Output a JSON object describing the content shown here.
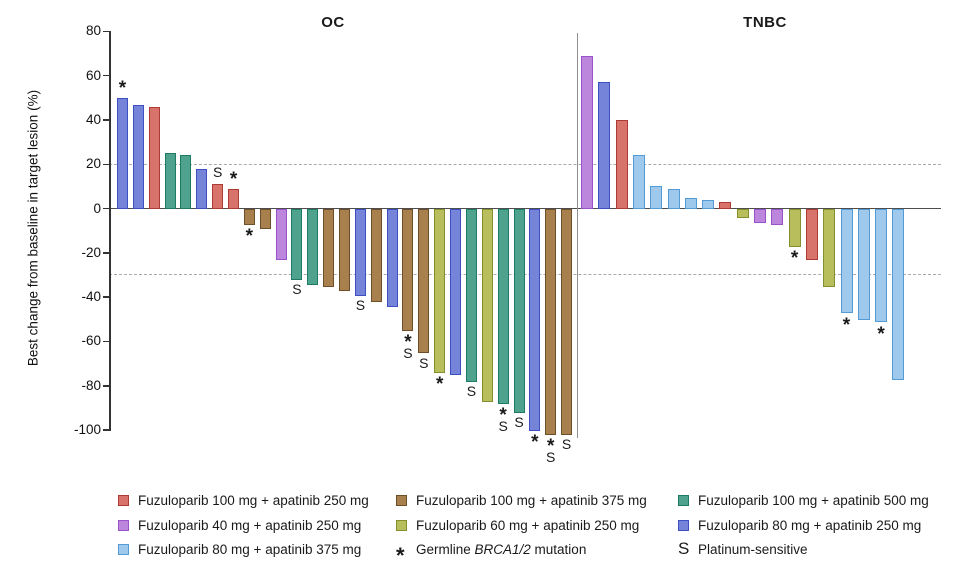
{
  "chart_data": {
    "type": "bar",
    "subtype": "waterfall",
    "ylabel": "Best change from baseline in target lesion (%)",
    "ylim": [
      -100,
      80
    ],
    "yticks": [
      80,
      60,
      40,
      20,
      0,
      -20,
      -40,
      -60,
      -80,
      -100
    ],
    "reference_lines": [
      20,
      -30
    ],
    "grid": "dashed reference lines at +20 and -30 only",
    "legend_position": "bottom",
    "groups": {
      "red250": {
        "label": "Fuzuloparib 100 mg + apatinib 250 mg",
        "fill": "#D8736C",
        "border": "#AE3B33"
      },
      "brown375": {
        "label": "Fuzuloparib 100 mg + apatinib 375 mg",
        "fill": "#A8804E",
        "border": "#6F4F29"
      },
      "teal500": {
        "label": "Fuzuloparib 100 mg + apatinib 500 mg",
        "fill": "#4EA28E",
        "border": "#1F7A64"
      },
      "purple250": {
        "label": "Fuzuloparib 40 mg + apatinib 250 mg",
        "fill": "#BB86DB",
        "border": "#9952C9"
      },
      "olive250": {
        "label": "Fuzuloparib 60 mg + apatinib 250 mg",
        "fill": "#B9BE5C",
        "border": "#848F2E"
      },
      "blue250": {
        "label": "Fuzuloparib 80 mg + apatinib 250 mg",
        "fill": "#7583D9",
        "border": "#3D50C3"
      },
      "lblue375": {
        "label": "Fuzuloparib 80 mg + apatinib 375 mg",
        "fill": "#9FC9EC",
        "border": "#549BD5"
      }
    },
    "symbols": {
      "brca": {
        "glyph": "*",
        "label_parts": [
          {
            "text": "Germline "
          },
          {
            "text": "BRCA1/2",
            "italic": true
          },
          {
            "text": " mutation"
          }
        ]
      },
      "plat": {
        "glyph": "S",
        "label": "Platinum-sensitive"
      }
    },
    "panels": [
      {
        "title": "OC",
        "bars": [
          {
            "value": 50,
            "group": "blue250",
            "flags": [
              "brca"
            ]
          },
          {
            "value": 47,
            "group": "blue250",
            "flags": []
          },
          {
            "value": 46,
            "group": "red250",
            "flags": []
          },
          {
            "value": 25,
            "group": "teal500",
            "flags": []
          },
          {
            "value": 24,
            "group": "teal500",
            "flags": []
          },
          {
            "value": 18,
            "group": "blue250",
            "flags": []
          },
          {
            "value": 11,
            "group": "red250",
            "flags": [
              "plat"
            ]
          },
          {
            "value": 9,
            "group": "red250",
            "flags": [
              "brca"
            ]
          },
          {
            "value": -7,
            "group": "brown375",
            "flags": [
              "brca"
            ]
          },
          {
            "value": -9,
            "group": "brown375",
            "flags": []
          },
          {
            "value": -23,
            "group": "purple250",
            "flags": []
          },
          {
            "value": -32,
            "group": "teal500",
            "flags": [
              "plat"
            ]
          },
          {
            "value": -34,
            "group": "teal500",
            "flags": []
          },
          {
            "value": -35,
            "group": "brown375",
            "flags": []
          },
          {
            "value": -37,
            "group": "brown375",
            "flags": []
          },
          {
            "value": -39,
            "group": "blue250",
            "flags": [
              "plat"
            ]
          },
          {
            "value": -42,
            "group": "brown375",
            "flags": []
          },
          {
            "value": -44,
            "group": "blue250",
            "flags": []
          },
          {
            "value": -55,
            "group": "brown375",
            "flags": [
              "brca",
              "plat"
            ]
          },
          {
            "value": -65,
            "group": "brown375",
            "flags": [
              "plat"
            ]
          },
          {
            "value": -74,
            "group": "olive250",
            "flags": [
              "brca"
            ]
          },
          {
            "value": -75,
            "group": "blue250",
            "flags": []
          },
          {
            "value": -78,
            "group": "teal500",
            "flags": [
              "plat"
            ]
          },
          {
            "value": -87,
            "group": "olive250",
            "flags": []
          },
          {
            "value": -88,
            "group": "teal500",
            "flags": [
              "brca",
              "plat"
            ]
          },
          {
            "value": -92,
            "group": "teal500",
            "flags": [
              "plat"
            ]
          },
          {
            "value": -100,
            "group": "blue250",
            "flags": [
              "brca"
            ]
          },
          {
            "value": -102,
            "group": "brown375",
            "flags": [
              "brca",
              "plat"
            ]
          },
          {
            "value": -102,
            "group": "brown375",
            "flags": [
              "plat"
            ]
          }
        ]
      },
      {
        "title": "TNBC",
        "bars": [
          {
            "value": 69,
            "group": "purple250",
            "flags": []
          },
          {
            "value": 57,
            "group": "blue250",
            "flags": []
          },
          {
            "value": 40,
            "group": "red250",
            "flags": []
          },
          {
            "value": 24,
            "group": "lblue375",
            "flags": []
          },
          {
            "value": 10,
            "group": "lblue375",
            "flags": []
          },
          {
            "value": 9,
            "group": "lblue375",
            "flags": []
          },
          {
            "value": 5,
            "group": "lblue375",
            "flags": []
          },
          {
            "value": 4,
            "group": "lblue375",
            "flags": []
          },
          {
            "value": 3,
            "group": "red250",
            "flags": []
          },
          {
            "value": -4,
            "group": "olive250",
            "flags": []
          },
          {
            "value": -6,
            "group": "purple250",
            "flags": []
          },
          {
            "value": -7,
            "group": "purple250",
            "flags": []
          },
          {
            "value": -17,
            "group": "olive250",
            "flags": [
              "brca"
            ]
          },
          {
            "value": -23,
            "group": "red250",
            "flags": []
          },
          {
            "value": -35,
            "group": "olive250",
            "flags": []
          },
          {
            "value": -47,
            "group": "lblue375",
            "flags": [
              "brca"
            ]
          },
          {
            "value": -50,
            "group": "lblue375",
            "flags": []
          },
          {
            "value": -51,
            "group": "lblue375",
            "flags": [
              "brca"
            ]
          },
          {
            "value": -77,
            "group": "lblue375",
            "flags": []
          }
        ]
      }
    ],
    "legend": {
      "columns": [
        {
          "items": [
            {
              "type": "swatch",
              "group": "red250"
            },
            {
              "type": "swatch",
              "group": "purple250"
            },
            {
              "type": "swatch",
              "group": "lblue375"
            }
          ]
        },
        {
          "items": [
            {
              "type": "swatch",
              "group": "brown375"
            },
            {
              "type": "swatch",
              "group": "olive250"
            },
            {
              "type": "symbol",
              "symbol": "brca"
            }
          ]
        },
        {
          "items": [
            {
              "type": "swatch",
              "group": "teal500"
            },
            {
              "type": "swatch",
              "group": "blue250"
            },
            {
              "type": "symbol",
              "symbol": "plat"
            }
          ]
        }
      ]
    }
  }
}
